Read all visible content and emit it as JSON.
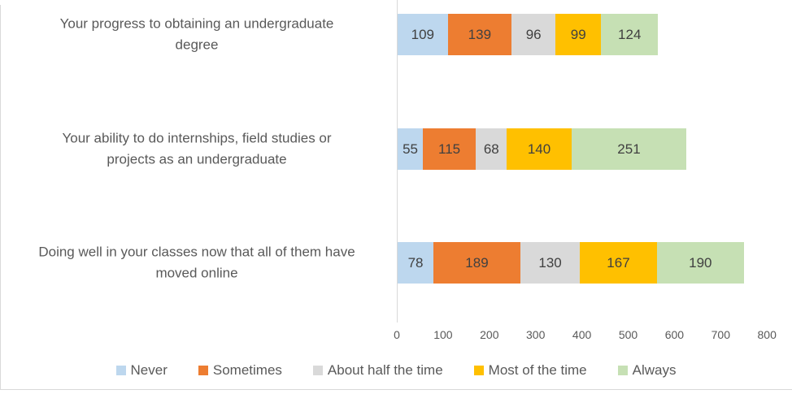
{
  "chart_data": {
    "type": "bar",
    "orientation": "horizontal-stacked",
    "title": "",
    "categories": [
      "Your progress to obtaining an undergraduate\ndegree",
      "Your ability to do internships, field studies or\nprojects as an undergraduate",
      "Doing well in your classes now that all of them have\nmoved online"
    ],
    "series": [
      {
        "name": "Never",
        "color": "#BDD7EE",
        "values": [
          109,
          55,
          78
        ]
      },
      {
        "name": "Sometimes",
        "color": "#ED7D31",
        "values": [
          139,
          115,
          189
        ]
      },
      {
        "name": "About half the time",
        "color": "#D9D9D9",
        "values": [
          96,
          68,
          130
        ]
      },
      {
        "name": "Most of the time",
        "color": "#FFC000",
        "values": [
          99,
          140,
          167
        ]
      },
      {
        "name": "Always",
        "color": "#C6E0B4",
        "values": [
          124,
          251,
          190
        ]
      }
    ],
    "x_axis": {
      "min": 0,
      "max": 800,
      "tick_interval": 100,
      "tick_labels": [
        "0",
        "100",
        "200",
        "300",
        "400",
        "500",
        "600",
        "700",
        "800"
      ]
    },
    "legend_position": "bottom",
    "grid": false,
    "data_label_color": "#404040",
    "axis_text_color": "#595959",
    "axis_line_color": "#d9d9d9"
  }
}
